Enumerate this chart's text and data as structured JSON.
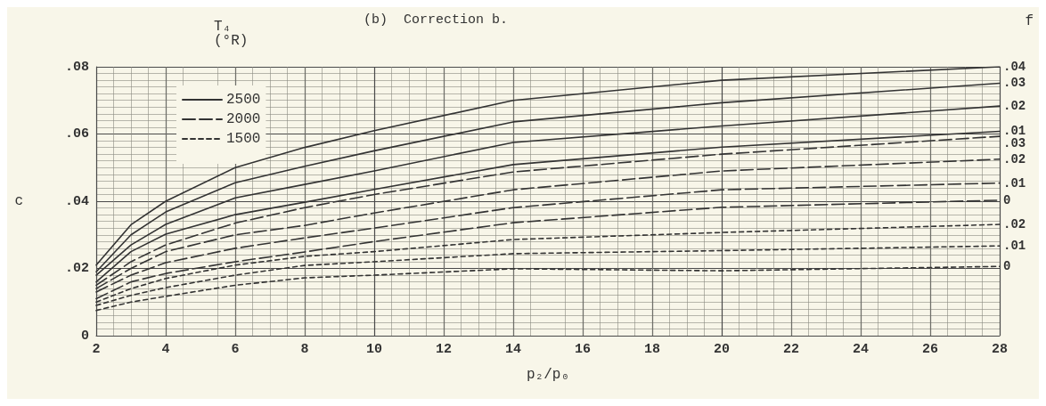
{
  "chart_data": {
    "type": "line",
    "title": "(b)  Correction b.",
    "xlabel": "p₂/p₀",
    "ylabel": "c",
    "legend_title": "T₄\n(°R)",
    "legend": "top left",
    "grid": true,
    "marker": "none",
    "x": [
      2,
      3,
      4,
      6,
      8,
      10,
      14,
      20,
      28
    ],
    "xlim": [
      2,
      28
    ],
    "xticks": [
      2,
      4,
      6,
      8,
      10,
      12,
      14,
      16,
      18,
      20,
      22,
      24,
      26,
      28
    ],
    "ylim": [
      0,
      0.08
    ],
    "yticks": [
      0,
      {
        "value": 0.02,
        "label": ".02"
      },
      {
        "value": 0.04,
        "label": ".04"
      },
      {
        "value": 0.06,
        "label": ".06"
      },
      {
        "value": 0.08,
        "label": ".08"
      }
    ],
    "series": [
      {
        "name": "2500",
        "color": "#333333",
        "line_style": "solid",
        "values": [
          0.021,
          0.033,
          0.04,
          0.05,
          0.056,
          0.061,
          0.07,
          0.076,
          0.08
        ]
      },
      {
        "color": "#333333",
        "line_style": "solid",
        "values": [
          0.019,
          0.03,
          0.0368,
          0.0455,
          0.0504,
          0.055,
          0.0636,
          0.0693,
          0.0751
        ]
      },
      {
        "color": "#333333",
        "line_style": "solid",
        "values": [
          0.018,
          0.027,
          0.0331,
          0.041,
          0.045,
          0.049,
          0.0575,
          0.0624,
          0.0683
        ]
      },
      {
        "color": "#333333",
        "line_style": "solid",
        "values": [
          0.016,
          0.025,
          0.0302,
          0.036,
          0.0397,
          0.0435,
          0.0509,
          0.0561,
          0.0608
        ]
      },
      {
        "name": "2000",
        "color": "#333333",
        "line_style": "dashed",
        "values": [
          0.015,
          0.022,
          0.027,
          0.0335,
          0.0381,
          0.042,
          0.0487,
          0.054,
          0.0593
        ]
      },
      {
        "color": "#333333",
        "line_style": "dashed",
        "values": [
          0.014,
          0.02,
          0.025,
          0.03,
          0.0328,
          0.0365,
          0.0434,
          0.049,
          0.0525
        ]
      },
      {
        "color": "#333333",
        "line_style": "dashed",
        "values": [
          0.013,
          0.018,
          0.0217,
          0.026,
          0.0291,
          0.032,
          0.0381,
          0.0434,
          0.0454
        ]
      },
      {
        "color": "#333333",
        "line_style": "dashed",
        "values": [
          0.011,
          0.016,
          0.0185,
          0.022,
          0.0249,
          0.028,
          0.0336,
          0.0382,
          0.0403
        ]
      },
      {
        "name": "1500",
        "color": "#333333",
        "line_style": "dotted",
        "values": [
          0.01,
          0.014,
          0.017,
          0.021,
          0.0236,
          0.025,
          0.0286,
          0.0307,
          0.0331
        ]
      },
      {
        "color": "#333333",
        "line_style": "dotted",
        "values": [
          0.009,
          0.012,
          0.0143,
          0.018,
          0.0209,
          0.022,
          0.0244,
          0.0253,
          0.0267
        ]
      },
      {
        "color": "#333333",
        "line_style": "dotted",
        "values": [
          0.0075,
          0.01,
          0.0117,
          0.015,
          0.0172,
          0.018,
          0.0199,
          0.0193,
          0.0206
        ]
      }
    ],
    "annotations": [
      "f",
      ".04",
      ".03",
      ".02",
      ".01",
      ".03",
      ".02",
      ".01",
      "0",
      ".02",
      ".01",
      "0"
    ]
  }
}
